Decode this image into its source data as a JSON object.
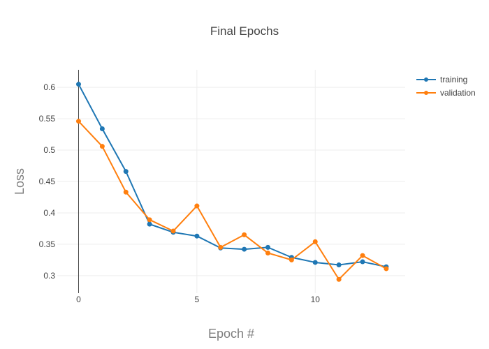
{
  "chart_data": {
    "type": "line",
    "title": "Final Epochs",
    "xlabel": "Epoch  #",
    "ylabel": "Loss",
    "xlim": [
      -0.9,
      13.8
    ],
    "ylim": [
      0.272,
      0.628
    ],
    "xticks": [
      0,
      5,
      10
    ],
    "yticks": [
      0.3,
      0.35,
      0.4,
      0.45,
      0.5,
      0.55,
      0.6
    ],
    "grid": true,
    "legend_position": "top-right",
    "x": [
      0,
      1,
      2,
      3,
      4,
      5,
      6,
      7,
      8,
      9,
      10,
      11,
      12,
      13
    ],
    "series": [
      {
        "name": "training",
        "color": "#1f77b4",
        "values": [
          0.605,
          0.534,
          0.466,
          0.382,
          0.369,
          0.363,
          0.344,
          0.342,
          0.345,
          0.329,
          0.321,
          0.317,
          0.322,
          0.314
        ]
      },
      {
        "name": "validation",
        "color": "#ff7f0e",
        "values": [
          0.546,
          0.506,
          0.433,
          0.389,
          0.371,
          0.411,
          0.345,
          0.365,
          0.336,
          0.325,
          0.354,
          0.294,
          0.332,
          0.311
        ]
      }
    ]
  }
}
